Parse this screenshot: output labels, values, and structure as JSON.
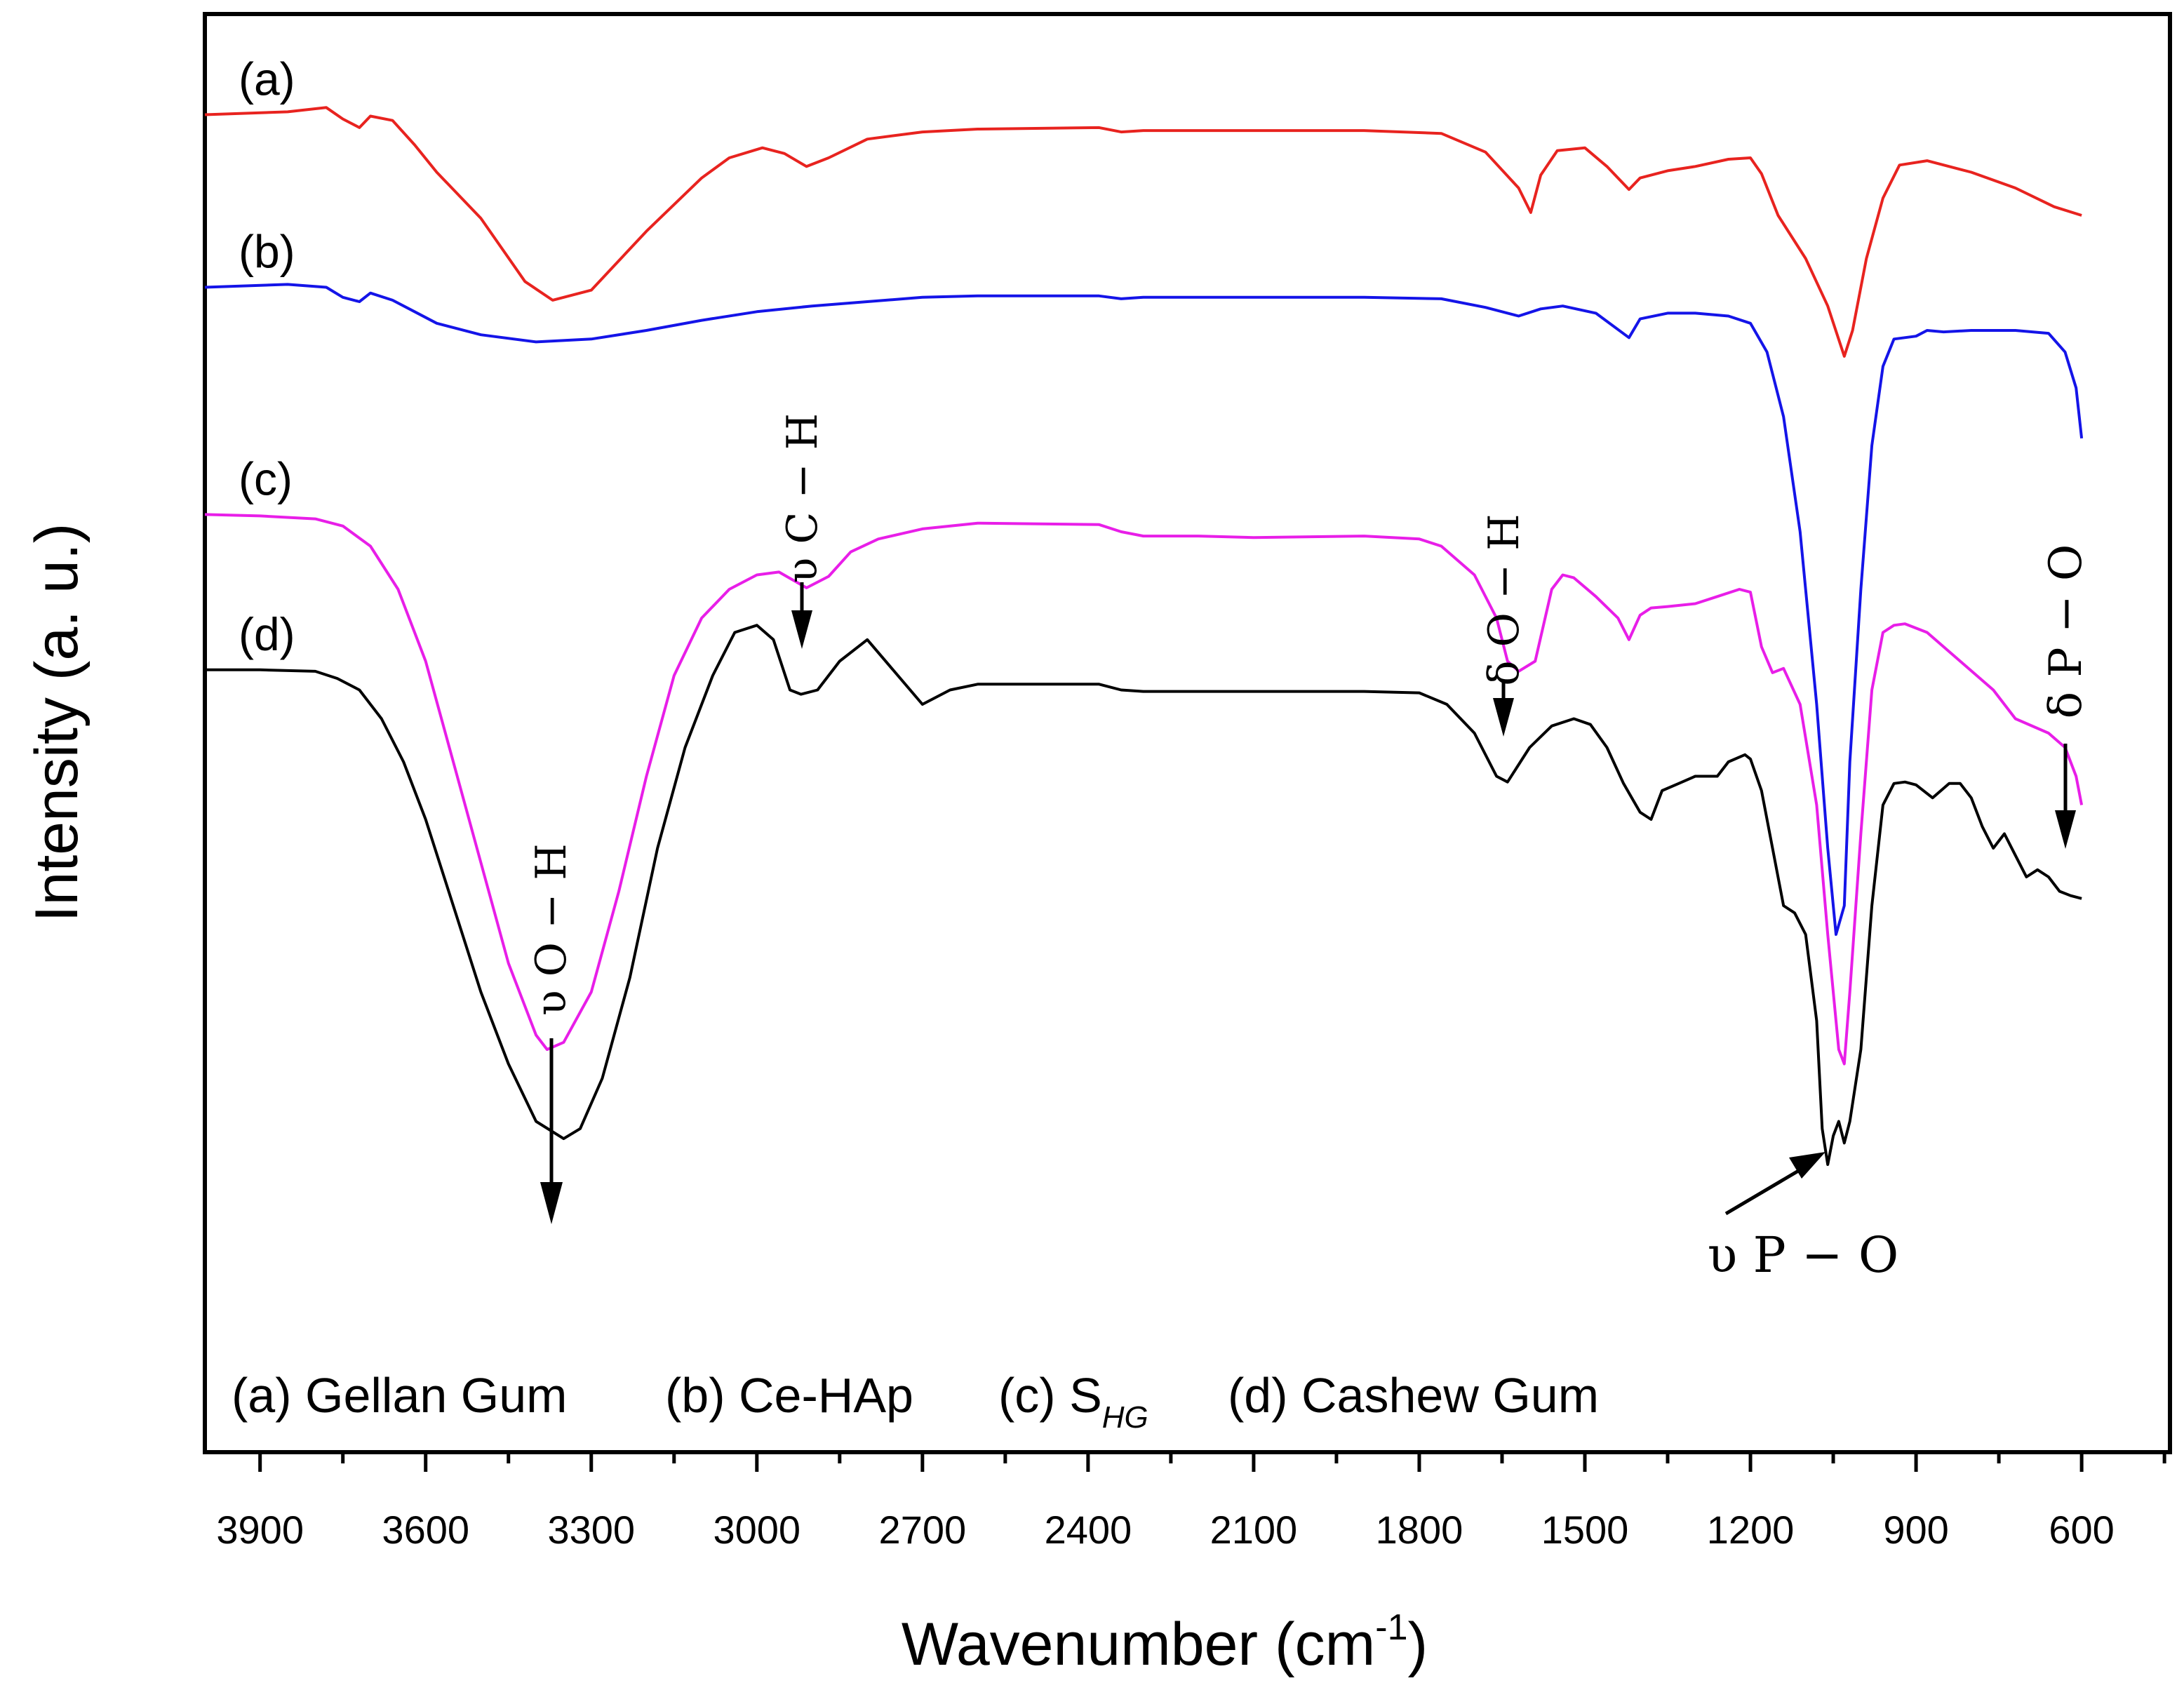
{
  "chart_data": {
    "type": "line",
    "title": "",
    "xlabel": "Wavenumber (cm",
    "xlabel_sup": "-1",
    "xlabel_close": ")",
    "ylabel": "Intensity (a. u.)",
    "xlim": [
      4000,
      440
    ],
    "x_reversed": true,
    "grid": false,
    "y_units": "offset intensity (a.u., 0 = top of plot, 100 = bottom)",
    "x_ticks": [
      "3900",
      "3600",
      "3300",
      "3000",
      "2700",
      "2400",
      "2100",
      "1800",
      "1500",
      "1200",
      "900",
      "600"
    ],
    "x_tick_values": [
      3900,
      3600,
      3300,
      3000,
      2700,
      2400,
      2100,
      1800,
      1500,
      1200,
      900,
      600
    ],
    "series": [
      {
        "name": "(a) Gellan Gum",
        "label": "(a)",
        "color": "#e8231f",
        "points": [
          [
            4000,
            7.0
          ],
          [
            3850,
            6.8
          ],
          [
            3780,
            6.5
          ],
          [
            3750,
            7.3
          ],
          [
            3720,
            7.9
          ],
          [
            3700,
            7.1
          ],
          [
            3660,
            7.4
          ],
          [
            3620,
            9.1
          ],
          [
            3580,
            11.0
          ],
          [
            3500,
            14.2
          ],
          [
            3420,
            18.6
          ],
          [
            3370,
            19.9
          ],
          [
            3300,
            19.2
          ],
          [
            3200,
            15.1
          ],
          [
            3100,
            11.4
          ],
          [
            3050,
            10.0
          ],
          [
            2990,
            9.3
          ],
          [
            2950,
            9.7
          ],
          [
            2910,
            10.6
          ],
          [
            2870,
            10.0
          ],
          [
            2800,
            8.7
          ],
          [
            2700,
            8.2
          ],
          [
            2600,
            8.0
          ],
          [
            2380,
            7.9
          ],
          [
            2340,
            8.2
          ],
          [
            2300,
            8.1
          ],
          [
            2100,
            8.1
          ],
          [
            1900,
            8.1
          ],
          [
            1760,
            8.3
          ],
          [
            1680,
            9.6
          ],
          [
            1620,
            12.1
          ],
          [
            1598,
            13.8
          ],
          [
            1580,
            11.2
          ],
          [
            1550,
            9.5
          ],
          [
            1500,
            9.3
          ],
          [
            1460,
            10.6
          ],
          [
            1420,
            12.2
          ],
          [
            1400,
            11.4
          ],
          [
            1350,
            10.9
          ],
          [
            1300,
            10.6
          ],
          [
            1240,
            10.1
          ],
          [
            1200,
            10.0
          ],
          [
            1180,
            11.1
          ],
          [
            1150,
            14.0
          ],
          [
            1100,
            17.0
          ],
          [
            1060,
            20.3
          ],
          [
            1030,
            23.8
          ],
          [
            1015,
            22.0
          ],
          [
            990,
            17.0
          ],
          [
            960,
            12.8
          ],
          [
            930,
            10.5
          ],
          [
            880,
            10.2
          ],
          [
            800,
            11.0
          ],
          [
            720,
            12.1
          ],
          [
            650,
            13.4
          ],
          [
            600,
            14.0
          ]
        ]
      },
      {
        "name": "(b) Ce-HAp",
        "label": "(b)",
        "color": "#1414e8",
        "points": [
          [
            4000,
            19.0
          ],
          [
            3850,
            18.8
          ],
          [
            3780,
            19.0
          ],
          [
            3750,
            19.7
          ],
          [
            3720,
            20.0
          ],
          [
            3700,
            19.4
          ],
          [
            3660,
            19.9
          ],
          [
            3620,
            20.7
          ],
          [
            3580,
            21.5
          ],
          [
            3500,
            22.3
          ],
          [
            3400,
            22.8
          ],
          [
            3300,
            22.6
          ],
          [
            3200,
            22.0
          ],
          [
            3100,
            21.3
          ],
          [
            3000,
            20.7
          ],
          [
            2900,
            20.3
          ],
          [
            2800,
            20.0
          ],
          [
            2700,
            19.7
          ],
          [
            2600,
            19.6
          ],
          [
            2380,
            19.6
          ],
          [
            2340,
            19.8
          ],
          [
            2300,
            19.7
          ],
          [
            2100,
            19.7
          ],
          [
            1900,
            19.7
          ],
          [
            1760,
            19.8
          ],
          [
            1680,
            20.4
          ],
          [
            1620,
            21.0
          ],
          [
            1580,
            20.5
          ],
          [
            1540,
            20.3
          ],
          [
            1480,
            20.8
          ],
          [
            1420,
            22.5
          ],
          [
            1400,
            21.2
          ],
          [
            1350,
            20.8
          ],
          [
            1300,
            20.8
          ],
          [
            1240,
            21.0
          ],
          [
            1200,
            21.5
          ],
          [
            1170,
            23.5
          ],
          [
            1140,
            28.0
          ],
          [
            1110,
            36.0
          ],
          [
            1080,
            48.0
          ],
          [
            1060,
            58.0
          ],
          [
            1045,
            64.0
          ],
          [
            1030,
            62.0
          ],
          [
            1020,
            52.0
          ],
          [
            1000,
            40.0
          ],
          [
            980,
            30.0
          ],
          [
            960,
            24.5
          ],
          [
            940,
            22.6
          ],
          [
            900,
            22.4
          ],
          [
            880,
            22.0
          ],
          [
            850,
            22.1
          ],
          [
            800,
            22.0
          ],
          [
            720,
            22.0
          ],
          [
            660,
            22.2
          ],
          [
            630,
            23.5
          ],
          [
            610,
            26.0
          ],
          [
            600,
            29.5
          ]
        ]
      },
      {
        "name": "(c) S_HG",
        "label": "(c)",
        "color": "#e81ee8",
        "points": [
          [
            4000,
            34.8
          ],
          [
            3900,
            34.9
          ],
          [
            3800,
            35.1
          ],
          [
            3750,
            35.6
          ],
          [
            3700,
            37.0
          ],
          [
            3650,
            40.0
          ],
          [
            3600,
            45.0
          ],
          [
            3550,
            52.0
          ],
          [
            3500,
            59.0
          ],
          [
            3450,
            66.0
          ],
          [
            3400,
            71.0
          ],
          [
            3380,
            72.0
          ],
          [
            3350,
            71.5
          ],
          [
            3300,
            68.0
          ],
          [
            3250,
            61.0
          ],
          [
            3200,
            53.0
          ],
          [
            3150,
            46.0
          ],
          [
            3100,
            42.0
          ],
          [
            3050,
            40.0
          ],
          [
            3000,
            39.0
          ],
          [
            2960,
            38.8
          ],
          [
            2910,
            39.9
          ],
          [
            2870,
            39.1
          ],
          [
            2830,
            37.4
          ],
          [
            2780,
            36.5
          ],
          [
            2700,
            35.8
          ],
          [
            2600,
            35.4
          ],
          [
            2380,
            35.5
          ],
          [
            2340,
            36.0
          ],
          [
            2300,
            36.3
          ],
          [
            2200,
            36.3
          ],
          [
            2100,
            36.4
          ],
          [
            1900,
            36.3
          ],
          [
            1800,
            36.5
          ],
          [
            1760,
            37.0
          ],
          [
            1700,
            39.0
          ],
          [
            1660,
            42.0
          ],
          [
            1640,
            45.0
          ],
          [
            1620,
            45.7
          ],
          [
            1590,
            45.0
          ],
          [
            1560,
            40.0
          ],
          [
            1540,
            39.0
          ],
          [
            1520,
            39.2
          ],
          [
            1480,
            40.5
          ],
          [
            1440,
            42.0
          ],
          [
            1420,
            43.5
          ],
          [
            1400,
            41.8
          ],
          [
            1380,
            41.3
          ],
          [
            1350,
            41.2
          ],
          [
            1300,
            41.0
          ],
          [
            1260,
            40.5
          ],
          [
            1220,
            40.0
          ],
          [
            1200,
            40.2
          ],
          [
            1180,
            44.0
          ],
          [
            1160,
            45.8
          ],
          [
            1140,
            45.5
          ],
          [
            1110,
            48.0
          ],
          [
            1080,
            55.0
          ],
          [
            1060,
            64.0
          ],
          [
            1040,
            72.0
          ],
          [
            1030,
            73.0
          ],
          [
            1020,
            68.0
          ],
          [
            1000,
            57.0
          ],
          [
            980,
            47.0
          ],
          [
            960,
            43.0
          ],
          [
            940,
            42.5
          ],
          [
            920,
            42.4
          ],
          [
            880,
            43.0
          ],
          [
            820,
            45.0
          ],
          [
            760,
            47.0
          ],
          [
            720,
            49.0
          ],
          [
            660,
            50.0
          ],
          [
            630,
            51.0
          ],
          [
            610,
            53.0
          ],
          [
            600,
            55.0
          ]
        ]
      },
      {
        "name": "(d) Cashew Gum",
        "label": "(d)",
        "color": "#000000",
        "points": [
          [
            4000,
            45.6
          ],
          [
            3900,
            45.6
          ],
          [
            3800,
            45.7
          ],
          [
            3760,
            46.2
          ],
          [
            3720,
            47.0
          ],
          [
            3680,
            49.0
          ],
          [
            3640,
            52.0
          ],
          [
            3600,
            56.0
          ],
          [
            3550,
            62.0
          ],
          [
            3500,
            68.0
          ],
          [
            3450,
            73.0
          ],
          [
            3400,
            77.0
          ],
          [
            3350,
            78.2
          ],
          [
            3320,
            77.5
          ],
          [
            3280,
            74.0
          ],
          [
            3230,
            67.0
          ],
          [
            3180,
            58.0
          ],
          [
            3130,
            51.0
          ],
          [
            3080,
            46.0
          ],
          [
            3040,
            43.0
          ],
          [
            3000,
            42.5
          ],
          [
            2970,
            43.5
          ],
          [
            2940,
            47.0
          ],
          [
            2920,
            47.3
          ],
          [
            2890,
            47.0
          ],
          [
            2850,
            45.0
          ],
          [
            2800,
            43.5
          ],
          [
            2700,
            48.0
          ],
          [
            2650,
            47.0
          ],
          [
            2600,
            46.6
          ],
          [
            2380,
            46.6
          ],
          [
            2340,
            47.0
          ],
          [
            2300,
            47.1
          ],
          [
            2100,
            47.1
          ],
          [
            1900,
            47.1
          ],
          [
            1800,
            47.2
          ],
          [
            1750,
            48.0
          ],
          [
            1700,
            50.0
          ],
          [
            1660,
            53.0
          ],
          [
            1640,
            53.4
          ],
          [
            1600,
            51.0
          ],
          [
            1560,
            49.5
          ],
          [
            1520,
            49.0
          ],
          [
            1490,
            49.4
          ],
          [
            1460,
            51.0
          ],
          [
            1430,
            53.5
          ],
          [
            1400,
            55.5
          ],
          [
            1380,
            56.0
          ],
          [
            1360,
            54.0
          ],
          [
            1330,
            53.5
          ],
          [
            1300,
            53.0
          ],
          [
            1260,
            53.0
          ],
          [
            1240,
            52.0
          ],
          [
            1210,
            51.5
          ],
          [
            1200,
            51.8
          ],
          [
            1180,
            54.0
          ],
          [
            1160,
            58.0
          ],
          [
            1140,
            62.0
          ],
          [
            1120,
            62.5
          ],
          [
            1100,
            64.0
          ],
          [
            1080,
            70.0
          ],
          [
            1070,
            77.5
          ],
          [
            1060,
            80.0
          ],
          [
            1050,
            78.0
          ],
          [
            1040,
            77.0
          ],
          [
            1030,
            78.5
          ],
          [
            1020,
            77.0
          ],
          [
            1000,
            72.0
          ],
          [
            980,
            62.0
          ],
          [
            960,
            55.0
          ],
          [
            940,
            53.5
          ],
          [
            920,
            53.4
          ],
          [
            900,
            53.6
          ],
          [
            870,
            54.5
          ],
          [
            840,
            53.5
          ],
          [
            820,
            53.5
          ],
          [
            800,
            54.5
          ],
          [
            780,
            56.5
          ],
          [
            760,
            58.0
          ],
          [
            740,
            57.0
          ],
          [
            720,
            58.5
          ],
          [
            700,
            60.0
          ],
          [
            680,
            59.5
          ],
          [
            660,
            60.0
          ],
          [
            640,
            61.0
          ],
          [
            620,
            61.3
          ],
          [
            600,
            61.5
          ]
        ]
      }
    ],
    "legend_text": {
      "a": "(a) Gellan Gum",
      "b": "(b) Ce-HAp",
      "c_prefix": "(c) S",
      "c_sub": "HG",
      "d": "(d) Cashew Gum"
    },
    "annotations": {
      "oh_stretch": "υ O − H",
      "ch_stretch": "υ C − H",
      "oh_bend": "δ O − H",
      "po_stretch": "υ P − O",
      "po_bend": "δ P − O"
    }
  }
}
